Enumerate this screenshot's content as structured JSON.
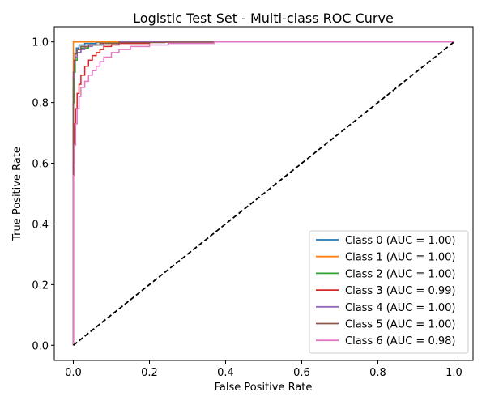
{
  "chart_data": {
    "type": "line",
    "title": "Logistic Test Set - Multi-class ROC Curve",
    "xlabel": "False Positive Rate",
    "ylabel": "True Positive Rate",
    "xlim": [
      -0.05,
      1.05
    ],
    "ylim": [
      -0.05,
      1.05
    ],
    "xticks": [
      "0.0",
      "0.2",
      "0.4",
      "0.6",
      "0.8",
      "1.0"
    ],
    "yticks": [
      "0.0",
      "0.2",
      "0.4",
      "0.6",
      "0.8",
      "1.0"
    ],
    "grid": false,
    "legend_position": "lower-right",
    "series": [
      {
        "name": "Class 0 (AUC = 1.00)",
        "color": "#1f77b4",
        "x": [
          0.0,
          0.0,
          0.002,
          0.004,
          0.008,
          0.015,
          0.03,
          0.06,
          0.12,
          1.0
        ],
        "y": [
          0.0,
          0.85,
          0.93,
          0.96,
          0.98,
          0.99,
          0.995,
          0.998,
          1.0,
          1.0
        ]
      },
      {
        "name": "Class 1 (AUC = 1.00)",
        "color": "#ff7f0e",
        "x": [
          0.0,
          0.0,
          1.0
        ],
        "y": [
          0.0,
          1.0,
          1.0
        ]
      },
      {
        "name": "Class 2 (AUC = 1.00)",
        "color": "#2ca02c",
        "x": [
          0.0,
          0.0,
          0.002,
          0.005,
          0.01,
          0.02,
          0.04,
          0.08,
          0.15,
          1.0
        ],
        "y": [
          0.0,
          0.8,
          0.9,
          0.94,
          0.965,
          0.98,
          0.99,
          0.996,
          1.0,
          1.0
        ]
      },
      {
        "name": "Class 3 (AUC = 0.99)",
        "color": "#d62728",
        "x": [
          0.0,
          0.0,
          0.003,
          0.006,
          0.01,
          0.015,
          0.02,
          0.03,
          0.04,
          0.05,
          0.06,
          0.07,
          0.08,
          0.1,
          0.12,
          0.2,
          1.0
        ],
        "y": [
          0.0,
          0.6,
          0.73,
          0.78,
          0.83,
          0.86,
          0.89,
          0.92,
          0.94,
          0.955,
          0.965,
          0.975,
          0.985,
          0.99,
          0.995,
          1.0,
          1.0
        ]
      },
      {
        "name": "Class 4 (AUC = 1.00)",
        "color": "#9467bd",
        "x": [
          0.0,
          0.0,
          0.002,
          0.005,
          0.01,
          0.02,
          0.03,
          0.05,
          0.08,
          0.12,
          1.0
        ],
        "y": [
          0.0,
          0.88,
          0.93,
          0.95,
          0.965,
          0.975,
          0.985,
          0.99,
          0.995,
          1.0,
          1.0
        ]
      },
      {
        "name": "Class 5 (AUC = 1.00)",
        "color": "#8c564b",
        "x": [
          0.0,
          0.0,
          0.002,
          0.005,
          0.01,
          0.02,
          0.04,
          0.07,
          0.12,
          0.24,
          0.37,
          1.0
        ],
        "y": [
          0.0,
          0.9,
          0.94,
          0.96,
          0.975,
          0.985,
          0.99,
          0.995,
          0.998,
          0.999,
          1.0,
          1.0
        ]
      },
      {
        "name": "Class 6 (AUC = 0.98)",
        "color": "#e377c2",
        "x": [
          0.0,
          0.0,
          0.003,
          0.006,
          0.01,
          0.015,
          0.02,
          0.03,
          0.04,
          0.05,
          0.06,
          0.07,
          0.08,
          0.1,
          0.12,
          0.15,
          0.2,
          0.25,
          0.37,
          1.0
        ],
        "y": [
          0.0,
          0.56,
          0.66,
          0.73,
          0.78,
          0.82,
          0.85,
          0.87,
          0.89,
          0.905,
          0.92,
          0.935,
          0.95,
          0.965,
          0.975,
          0.985,
          0.99,
          0.995,
          1.0,
          1.0
        ]
      }
    ],
    "reference_line": {
      "color": "#000000",
      "style": "dashed",
      "x": [
        0.0,
        1.0
      ],
      "y": [
        0.0,
        1.0
      ]
    }
  }
}
